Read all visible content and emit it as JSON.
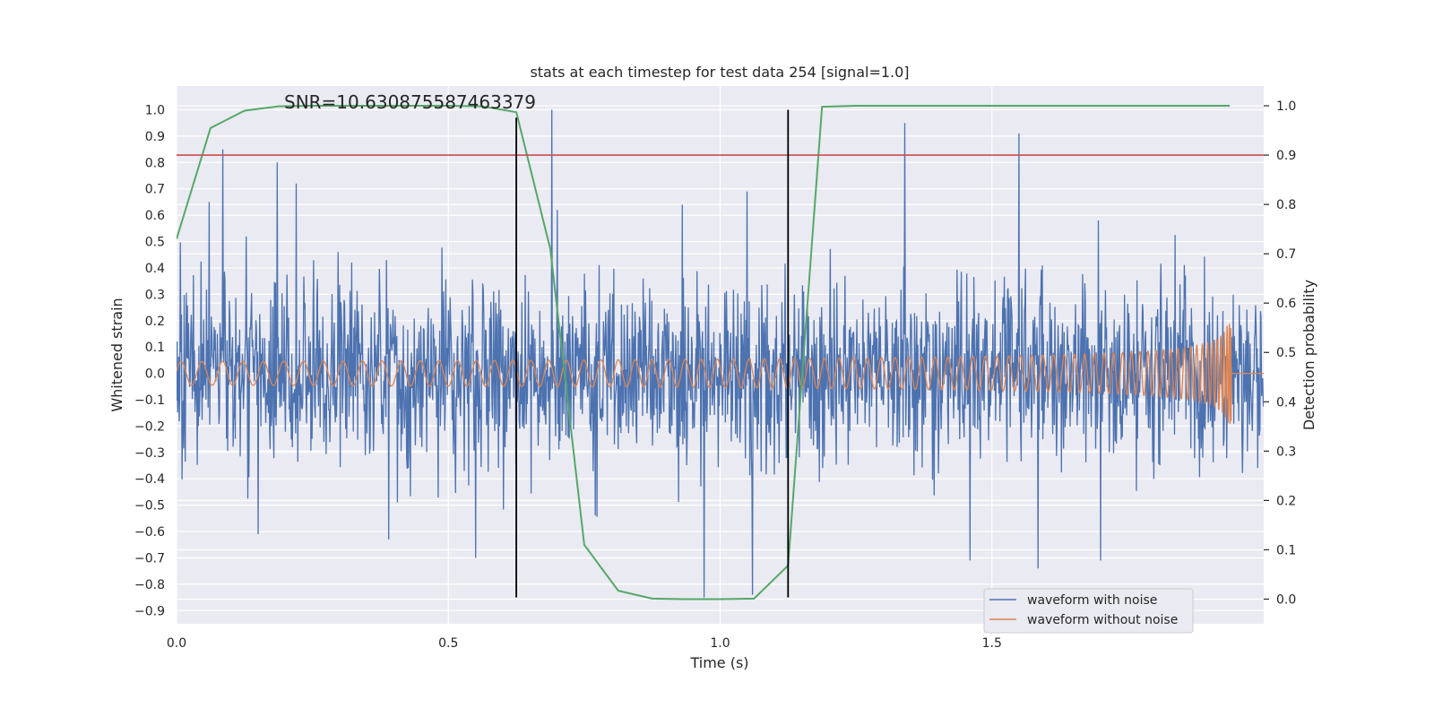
{
  "chart_data": {
    "type": "line",
    "title": "stats at each timestep for test data 254 [signal=1.0]",
    "xlabel": "Time (s)",
    "ylabel": "Whitened strain",
    "y2label": "Detection probability",
    "xlim": [
      0,
      2.0
    ],
    "ylim": [
      -0.95,
      1.09
    ],
    "y2lim": [
      -0.05,
      1.04
    ],
    "xticks": [
      0.0,
      0.5,
      1.0,
      1.5
    ],
    "xtick_labels": [
      "0.0",
      "0.5",
      "1.0",
      "1.5"
    ],
    "yticks": [
      1.0,
      0.9,
      0.8,
      0.7,
      0.6,
      0.5,
      0.4,
      0.3,
      0.2,
      0.1,
      0.0,
      -0.1,
      -0.2,
      -0.3,
      -0.4,
      -0.5,
      -0.6,
      -0.7,
      -0.8,
      -0.9
    ],
    "ytick_labels": [
      "1.0",
      "0.9",
      "0.8",
      "0.7",
      "0.6",
      "0.5",
      "0.4",
      "0.3",
      "0.2",
      "0.1",
      "0.0",
      "−0.1",
      "−0.2",
      "−0.3",
      "−0.4",
      "−0.5",
      "−0.6",
      "−0.7",
      "−0.8",
      "−0.9"
    ],
    "y2ticks": [
      1.0,
      0.9,
      0.8,
      0.7,
      0.6,
      0.5,
      0.4,
      0.3,
      0.2,
      0.1,
      0.0
    ],
    "y2tick_labels": [
      "1.0",
      "0.9",
      "0.8",
      "0.7",
      "0.6",
      "0.5",
      "0.4",
      "0.3",
      "0.2",
      "0.1",
      "0.0"
    ],
    "annotation": "SNR=10.630875587463379",
    "threshold": {
      "value": 0.9,
      "axis": "right",
      "color": "#c44e52"
    },
    "vlines": [
      {
        "x": 0.625,
        "ymin": -0.85,
        "ymax": 0.97
      },
      {
        "x": 1.125,
        "ymin": -0.85,
        "ymax": 1.0
      }
    ],
    "detection_probability": {
      "name": "detection probability",
      "color": "#55a868",
      "x": [
        0.0,
        0.0625,
        0.125,
        0.1875,
        0.25,
        0.3125,
        0.375,
        0.4375,
        0.5,
        0.5625,
        0.625,
        0.6875,
        0.75,
        0.8125,
        0.875,
        0.9375,
        1.0,
        1.0625,
        1.125,
        1.1875,
        1.25,
        1.3125,
        1.375,
        1.4375,
        1.5,
        1.5625,
        1.625,
        1.6875,
        1.75,
        1.8125,
        1.875,
        1.9375
      ],
      "values": [
        0.73,
        0.955,
        0.99,
        0.999,
        1.0,
        1.0,
        1.0,
        1.0,
        1.0,
        0.999,
        0.987,
        0.71,
        0.11,
        0.017,
        0.001,
        0.0,
        0.0,
        0.001,
        0.068,
        0.998,
        1.0,
        1.0,
        1.0,
        1.0,
        1.0,
        1.0,
        1.0,
        1.0,
        1.0,
        1.0,
        1.0,
        1.0
      ]
    },
    "series": [
      {
        "name": "waveform with noise",
        "color": "#4c72b0",
        "sample_count": 2000,
        "noise_std": 0.17,
        "spikes": [
          {
            "x": 0.085,
            "y": 0.85
          },
          {
            "x": 0.06,
            "y": 0.65
          },
          {
            "x": 0.185,
            "y": 0.8
          },
          {
            "x": 0.22,
            "y": 0.72
          },
          {
            "x": 0.69,
            "y": 1.0
          },
          {
            "x": 1.34,
            "y": 0.95
          },
          {
            "x": 1.55,
            "y": 0.91
          },
          {
            "x": 0.97,
            "y": -0.85
          },
          {
            "x": 1.06,
            "y": -0.84
          },
          {
            "x": 0.15,
            "y": -0.61
          },
          {
            "x": 0.39,
            "y": -0.63
          },
          {
            "x": 1.46,
            "y": -0.71
          },
          {
            "x": 1.585,
            "y": -0.74
          },
          {
            "x": 1.7,
            "y": -0.71
          },
          {
            "x": 1.05,
            "y": 0.69
          },
          {
            "x": 0.7,
            "y": 0.62
          },
          {
            "x": 0.93,
            "y": 0.64
          },
          {
            "x": 0.55,
            "y": -0.7
          }
        ]
      },
      {
        "name": "waveform without noise",
        "color": "#dd8452",
        "model": "chirp",
        "base_amplitude": 0.045,
        "base_frequency_hz": 26,
        "merger_time": 1.94,
        "peak_amplitude": 0.28
      }
    ],
    "legend": {
      "position": "bottom-right",
      "entries": [
        "waveform with noise",
        "waveform without noise"
      ]
    }
  }
}
